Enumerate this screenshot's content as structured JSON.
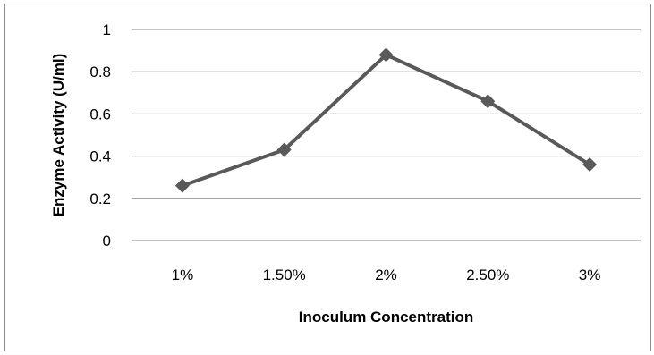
{
  "chart_data": {
    "type": "line",
    "title": "",
    "xlabel": "Inoculum Concentration",
    "ylabel": "Enzyme Activity (U/ml)",
    "categories": [
      "1%",
      "1.50%",
      "2%",
      "2.50%",
      "3%"
    ],
    "series": [
      {
        "values": [
          0.26,
          0.43,
          0.88,
          0.66,
          0.36
        ]
      }
    ],
    "ylim": [
      0,
      1
    ],
    "yticks": [
      0,
      0.2,
      0.4,
      0.6,
      0.8,
      1
    ],
    "ytick_labels": [
      "0",
      "0.2",
      "0.4",
      "0.6",
      "0.8",
      "1"
    ],
    "grid": true,
    "marker": "diamond",
    "line_color": "#595959",
    "grid_color": "#878787"
  }
}
